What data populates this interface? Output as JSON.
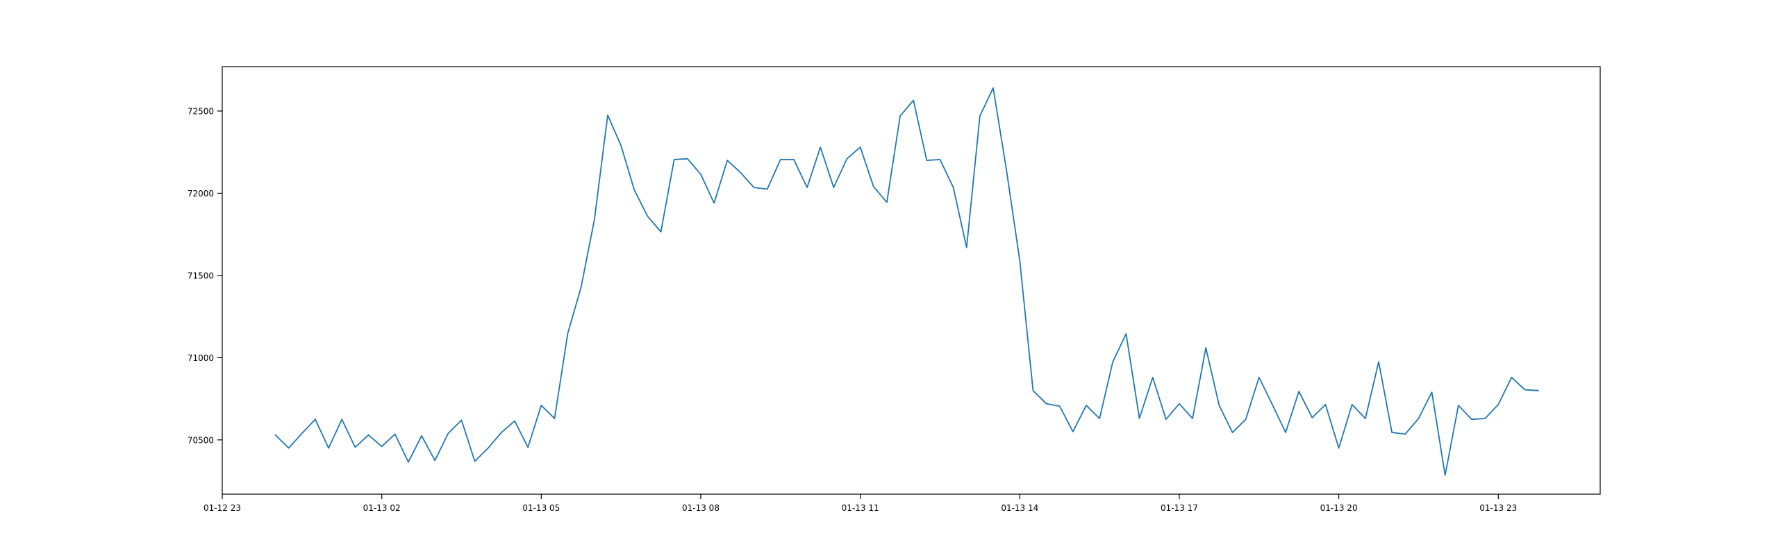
{
  "chart_data": {
    "type": "line",
    "title": "",
    "xlabel": "",
    "ylabel": "",
    "grid": false,
    "line_color": "#1f77b4",
    "xlim": [
      "2024-01-12T23:00",
      "2024-01-14T00:55"
    ],
    "ylim": [
      70170,
      72770
    ],
    "x_ticks": [
      {
        "t": "2024-01-12T23:00",
        "label": "01-12 23"
      },
      {
        "t": "2024-01-13T02:00",
        "label": "01-13 02"
      },
      {
        "t": "2024-01-13T05:00",
        "label": "01-13 05"
      },
      {
        "t": "2024-01-13T08:00",
        "label": "01-13 08"
      },
      {
        "t": "2024-01-13T11:00",
        "label": "01-13 11"
      },
      {
        "t": "2024-01-13T14:00",
        "label": "01-13 14"
      },
      {
        "t": "2024-01-13T17:00",
        "label": "01-13 17"
      },
      {
        "t": "2024-01-13T20:00",
        "label": "01-13 20"
      },
      {
        "t": "2024-01-13T23:00",
        "label": "01-13 23"
      }
    ],
    "y_ticks": [
      {
        "v": 70500,
        "label": "70500"
      },
      {
        "v": 71000,
        "label": "71000"
      },
      {
        "v": 71500,
        "label": "71500"
      },
      {
        "v": 72000,
        "label": "72000"
      },
      {
        "v": 72500,
        "label": "72500"
      }
    ],
    "series": [
      {
        "x": [
          "2024-01-13T00:00",
          "2024-01-13T00:15",
          "2024-01-13T00:30",
          "2024-01-13T00:45",
          "2024-01-13T01:00",
          "2024-01-13T01:15",
          "2024-01-13T01:30",
          "2024-01-13T01:45",
          "2024-01-13T02:00",
          "2024-01-13T02:15",
          "2024-01-13T02:30",
          "2024-01-13T02:45",
          "2024-01-13T03:00",
          "2024-01-13T03:15",
          "2024-01-13T03:30",
          "2024-01-13T03:45",
          "2024-01-13T04:00",
          "2024-01-13T04:15",
          "2024-01-13T04:30",
          "2024-01-13T04:45",
          "2024-01-13T05:00",
          "2024-01-13T05:15",
          "2024-01-13T05:30",
          "2024-01-13T05:45",
          "2024-01-13T06:00",
          "2024-01-13T06:15",
          "2024-01-13T06:30",
          "2024-01-13T06:45",
          "2024-01-13T07:00",
          "2024-01-13T07:15",
          "2024-01-13T07:30",
          "2024-01-13T07:45",
          "2024-01-13T08:00",
          "2024-01-13T08:15",
          "2024-01-13T08:30",
          "2024-01-13T08:45",
          "2024-01-13T09:00",
          "2024-01-13T09:15",
          "2024-01-13T09:30",
          "2024-01-13T09:45",
          "2024-01-13T10:00",
          "2024-01-13T10:15",
          "2024-01-13T10:30",
          "2024-01-13T10:45",
          "2024-01-13T11:00",
          "2024-01-13T11:15",
          "2024-01-13T11:30",
          "2024-01-13T11:45",
          "2024-01-13T12:00",
          "2024-01-13T12:15",
          "2024-01-13T12:30",
          "2024-01-13T12:45",
          "2024-01-13T13:00",
          "2024-01-13T13:15",
          "2024-01-13T13:30",
          "2024-01-13T13:45",
          "2024-01-13T14:00",
          "2024-01-13T14:15",
          "2024-01-13T14:30",
          "2024-01-13T14:45",
          "2024-01-13T15:00",
          "2024-01-13T15:15",
          "2024-01-13T15:30",
          "2024-01-13T15:45",
          "2024-01-13T16:00",
          "2024-01-13T16:15",
          "2024-01-13T16:30",
          "2024-01-13T16:45",
          "2024-01-13T17:00",
          "2024-01-13T17:15",
          "2024-01-13T17:30",
          "2024-01-13T17:45",
          "2024-01-13T18:00",
          "2024-01-13T18:15",
          "2024-01-13T18:30",
          "2024-01-13T18:45",
          "2024-01-13T19:00",
          "2024-01-13T19:15",
          "2024-01-13T19:30",
          "2024-01-13T19:45",
          "2024-01-13T20:00",
          "2024-01-13T20:15",
          "2024-01-13T20:30",
          "2024-01-13T20:45",
          "2024-01-13T21:00",
          "2024-01-13T21:15",
          "2024-01-13T21:30",
          "2024-01-13T21:45",
          "2024-01-13T22:00",
          "2024-01-13T22:15",
          "2024-01-13T22:30",
          "2024-01-13T22:45",
          "2024-01-13T23:00",
          "2024-01-13T23:15",
          "2024-01-13T23:30",
          "2024-01-13T23:45"
        ],
        "y": [
          70530,
          70450,
          70540,
          70625,
          70450,
          70625,
          70455,
          70530,
          70460,
          70535,
          70365,
          70525,
          70375,
          70540,
          70620,
          70370,
          70450,
          70545,
          70615,
          70455,
          70710,
          70630,
          71150,
          71430,
          71840,
          72475,
          72290,
          72020,
          71860,
          71765,
          72205,
          72210,
          72115,
          71940,
          72200,
          72125,
          72035,
          72025,
          72205,
          72205,
          72035,
          72280,
          72035,
          72210,
          72280,
          72040,
          71945,
          72470,
          72565,
          72200,
          72205,
          72035,
          71670,
          72470,
          72640,
          72140,
          71590,
          70800,
          70720,
          70705,
          70550,
          70710,
          70630,
          70975,
          71145,
          70630,
          70880,
          70625,
          70720,
          70630,
          71060,
          70710,
          70545,
          70625,
          70880,
          70715,
          70545,
          70795,
          70635,
          70715,
          70450,
          70715,
          70630,
          70975,
          70545,
          70535,
          70630,
          70790,
          70285,
          70710,
          70625,
          70630,
          70715,
          70880,
          70805,
          70800
        ]
      }
    ]
  }
}
